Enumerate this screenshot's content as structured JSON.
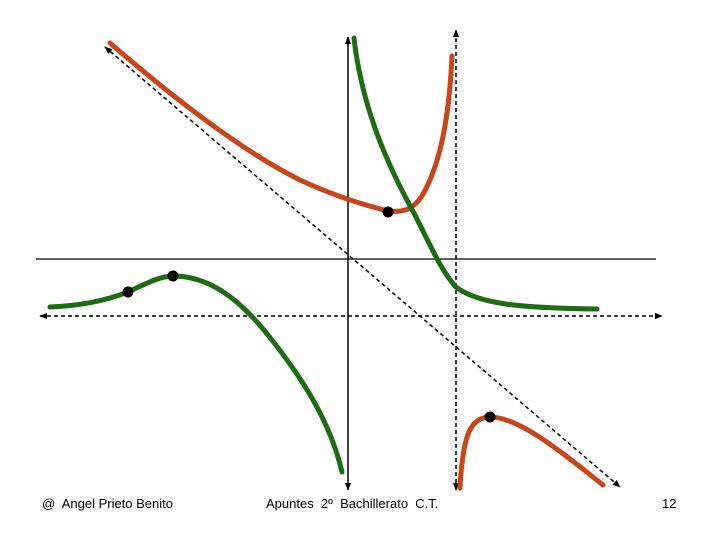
{
  "footer": {
    "author": "@  Angel Prieto Benito",
    "course": "Apuntes  2º  Bachillerato  C.T.",
    "page": "12"
  },
  "colors": {
    "orange_curve": "#c8461a",
    "green_curve": "#1e6b13",
    "axes": "#000000",
    "points": "#000000"
  }
}
